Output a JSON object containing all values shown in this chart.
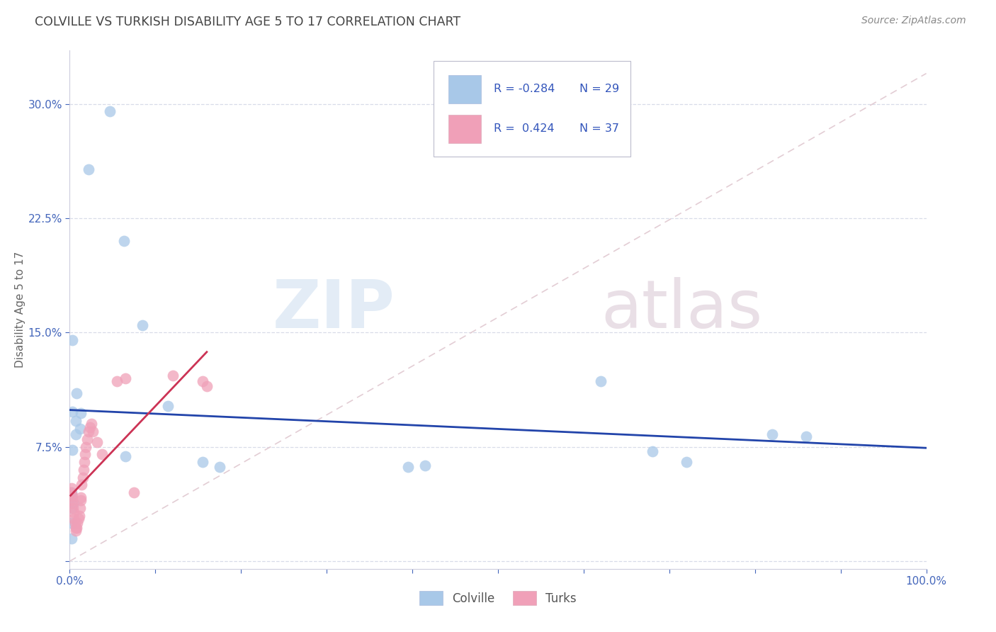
{
  "title": "COLVILLE VS TURKISH DISABILITY AGE 5 TO 17 CORRELATION CHART",
  "source": "Source: ZipAtlas.com",
  "ylabel": "Disability Age 5 to 17",
  "watermark_zip": "ZIP",
  "watermark_atlas": "atlas",
  "xlim": [
    0.0,
    1.0
  ],
  "ylim": [
    -0.005,
    0.335
  ],
  "xticks": [
    0.0,
    0.1,
    0.2,
    0.3,
    0.4,
    0.5,
    0.6,
    0.7,
    0.8,
    0.9,
    1.0
  ],
  "xticklabels": [
    "0.0%",
    "",
    "",
    "",
    "",
    "",
    "",
    "",
    "",
    "",
    "100.0%"
  ],
  "yticks": [
    0.0,
    0.075,
    0.15,
    0.225,
    0.3
  ],
  "yticklabels": [
    "",
    "7.5%",
    "15.0%",
    "22.5%",
    "30.0%"
  ],
  "grid_color": "#d8dce8",
  "background_color": "#ffffff",
  "colville_color": "#a8c8e8",
  "turks_color": "#f0a0b8",
  "colville_line_color": "#2244aa",
  "turks_line_color": "#cc3355",
  "diagonal_color": "#e0c8d0",
  "legend_R_colville": "R = -0.284",
  "legend_N_colville": "N = 29",
  "legend_R_turks": "R =  0.424",
  "legend_N_turks": "N = 37",
  "colville_x": [
    0.047,
    0.022,
    0.063,
    0.003,
    0.085,
    0.008,
    0.003,
    0.013,
    0.012,
    0.007,
    0.007,
    0.003,
    0.065,
    0.115,
    0.155,
    0.175,
    0.005,
    0.395,
    0.415,
    0.68,
    0.72,
    0.82,
    0.86,
    0.002,
    0.002,
    0.002,
    0.002,
    0.002,
    0.62
  ],
  "colville_y": [
    0.295,
    0.257,
    0.21,
    0.145,
    0.155,
    0.11,
    0.098,
    0.097,
    0.087,
    0.083,
    0.092,
    0.073,
    0.069,
    0.102,
    0.065,
    0.062,
    0.038,
    0.062,
    0.063,
    0.072,
    0.065,
    0.083,
    0.082,
    0.045,
    0.042,
    0.035,
    0.025,
    0.015,
    0.118
  ],
  "turks_x": [
    0.001,
    0.002,
    0.002,
    0.003,
    0.003,
    0.004,
    0.005,
    0.005,
    0.006,
    0.007,
    0.007,
    0.008,
    0.009,
    0.01,
    0.011,
    0.012,
    0.013,
    0.013,
    0.014,
    0.015,
    0.016,
    0.017,
    0.018,
    0.019,
    0.02,
    0.022,
    0.024,
    0.025,
    0.027,
    0.032,
    0.038,
    0.055,
    0.065,
    0.075,
    0.12,
    0.155,
    0.16
  ],
  "turks_y": [
    0.045,
    0.048,
    0.04,
    0.043,
    0.038,
    0.035,
    0.032,
    0.028,
    0.025,
    0.022,
    0.02,
    0.022,
    0.025,
    0.028,
    0.03,
    0.035,
    0.04,
    0.042,
    0.05,
    0.055,
    0.06,
    0.065,
    0.07,
    0.075,
    0.08,
    0.085,
    0.088,
    0.09,
    0.085,
    0.078,
    0.07,
    0.118,
    0.12,
    0.045,
    0.122,
    0.118,
    0.115
  ],
  "title_color": "#444444",
  "source_color": "#888888",
  "tick_color": "#4466bb",
  "ylabel_color": "#666666"
}
